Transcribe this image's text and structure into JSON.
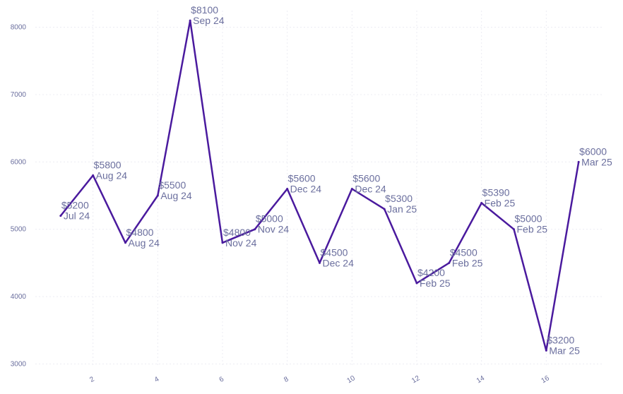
{
  "chart_data": {
    "type": "line",
    "title": "",
    "xlabel": "",
    "ylabel": "",
    "xlim": [
      0,
      18
    ],
    "ylim": [
      2900,
      8300
    ],
    "x_ticks": [
      2,
      4,
      6,
      8,
      10,
      12,
      14,
      16
    ],
    "x_tick_labels": [
      "2",
      "4",
      "6",
      "8",
      "10",
      "12",
      "14",
      "16"
    ],
    "y_ticks": [
      3000,
      4000,
      5000,
      6000,
      7000,
      8000
    ],
    "y_tick_labels": [
      "3000",
      "4000",
      "5000",
      "6000",
      "7000",
      "8000"
    ],
    "grid": true,
    "line_color": "#4a1a9e",
    "label_color": "#6b6f9e",
    "series": [
      {
        "x": [
          1,
          2,
          3,
          4,
          5,
          6,
          7,
          8,
          9,
          10,
          11,
          12,
          13,
          14,
          15,
          16,
          17
        ],
        "y": [
          5200,
          5800,
          4800,
          5500,
          8100,
          4800,
          5000,
          5600,
          4500,
          5600,
          5300,
          4200,
          4500,
          5390,
          5000,
          3200,
          6000
        ],
        "value_labels": [
          "$5200",
          "$5800",
          "$4800",
          "$5500",
          "$8100",
          "$4800",
          "$5000",
          "$5600",
          "$4500",
          "$5600",
          "$5300",
          "$4200",
          "$4500",
          "$5390",
          "$5000",
          "$3200",
          "$6000"
        ],
        "period_labels": [
          "Jul 24",
          "Aug 24",
          "Aug 24",
          "Aug 24",
          "Sep 24",
          "Nov 24",
          "Nov 24",
          "Dec 24",
          "Dec 24",
          "Dec 24",
          "Jan 25",
          "Feb 25",
          "Feb 25",
          "Feb 25",
          "Feb 25",
          "Mar 25",
          "Mar 25"
        ]
      }
    ]
  }
}
